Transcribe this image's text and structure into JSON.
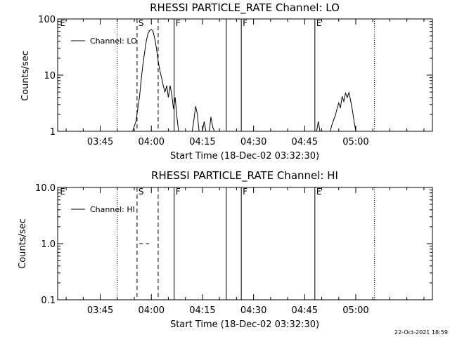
{
  "footer": {
    "timestamp": "22-Oct-2021 18:59"
  },
  "chart_data": [
    {
      "type": "line",
      "title": "RHESSI PARTICLE_RATE Channel: LO",
      "xlabel": "Start Time (18-Dec-02 03:32:30)",
      "ylabel": "Counts/sec",
      "y_scale": "log",
      "ylim": [
        1,
        100
      ],
      "y_ticks": [
        {
          "v": 1,
          "label": "1"
        },
        {
          "v": 10,
          "label": "10"
        },
        {
          "v": 100,
          "label": "100"
        }
      ],
      "x_unit": "minutes after 03:32:30",
      "xlim": [
        0,
        110
      ],
      "x_ticks": [
        {
          "v": 12.5,
          "label": "03:45"
        },
        {
          "v": 27.5,
          "label": "04:00"
        },
        {
          "v": 42.5,
          "label": "04:15"
        },
        {
          "v": 57.5,
          "label": "04:30"
        },
        {
          "v": 72.5,
          "label": "04:45"
        },
        {
          "v": 87.5,
          "label": "05:00"
        }
      ],
      "legend": "top-left",
      "series": [
        {
          "name": "Channel: LO",
          "segments": [
            [
              [
                22.0,
                1.0
              ],
              [
                23.0,
                1.5
              ],
              [
                23.5,
                2.5
              ],
              [
                24.0,
                4
              ],
              [
                24.5,
                8
              ],
              [
                25.0,
                15
              ],
              [
                25.5,
                25
              ],
              [
                26.0,
                40
              ],
              [
                26.5,
                55
              ],
              [
                27.0,
                62
              ],
              [
                27.5,
                65
              ],
              [
                28.0,
                60
              ],
              [
                28.5,
                45
              ],
              [
                29.0,
                30
              ],
              [
                29.5,
                18
              ],
              [
                30.0,
                12
              ],
              [
                30.5,
                9
              ],
              [
                31.0,
                6.5
              ],
              [
                31.5,
                5
              ],
              [
                32.0,
                6.5
              ],
              [
                32.5,
                4
              ],
              [
                33.0,
                6.5
              ],
              [
                33.5,
                4.5
              ],
              [
                34.0,
                2.5
              ],
              [
                34.5,
                4
              ],
              [
                35.0,
                1.8
              ],
              [
                35.5,
                1.0
              ]
            ],
            [
              [
                39.5,
                1.0
              ],
              [
                40.0,
                1.6
              ],
              [
                40.5,
                2.8
              ],
              [
                41.0,
                2.0
              ],
              [
                41.5,
                1.0
              ]
            ],
            [
              [
                42.5,
                1.0
              ],
              [
                43.0,
                1.5
              ],
              [
                43.5,
                1.0
              ]
            ],
            [
              [
                44.5,
                1.0
              ],
              [
                45.0,
                1.8
              ],
              [
                45.5,
                1.2
              ],
              [
                46.0,
                1.0
              ]
            ],
            [
              [
                76.0,
                1.0
              ],
              [
                76.5,
                1.5
              ],
              [
                77.0,
                1.0
              ]
            ],
            [
              [
                80.0,
                1.0
              ],
              [
                80.5,
                1.3
              ],
              [
                81.0,
                1.6
              ],
              [
                81.5,
                1.9
              ],
              [
                82.0,
                2.5
              ],
              [
                82.5,
                3.2
              ],
              [
                83.0,
                2.6
              ],
              [
                83.5,
                4.2
              ],
              [
                84.0,
                3.4
              ],
              [
                84.5,
                4.8
              ],
              [
                85.0,
                4.0
              ],
              [
                85.5,
                4.9
              ],
              [
                86.0,
                3.5
              ],
              [
                86.5,
                2.4
              ],
              [
                87.0,
                1.5
              ],
              [
                87.5,
                1.0
              ]
            ]
          ]
        }
      ],
      "markers": [
        {
          "x": 17.5,
          "style": "dotted",
          "label": ""
        },
        {
          "x": 23.3,
          "style": "dashed",
          "label": "S"
        },
        {
          "x": 29.5,
          "style": "dashed",
          "label": ""
        },
        {
          "x": 34.2,
          "style": "solid",
          "label": "F"
        },
        {
          "x": 49.5,
          "style": "solid",
          "label": ""
        },
        {
          "x": 53.9,
          "style": "solid",
          "label": "F"
        },
        {
          "x": 75.5,
          "style": "solid",
          "label": "E"
        },
        {
          "x": 93.0,
          "style": "dotted",
          "label": ""
        }
      ],
      "corner_labels": [
        {
          "x": 0.5,
          "label": "E"
        }
      ]
    },
    {
      "type": "line",
      "title": "RHESSI PARTICLE_RATE Channel: HI",
      "xlabel": "Start Time (18-Dec-02 03:32:30)",
      "ylabel": "Counts/sec",
      "y_scale": "log",
      "ylim": [
        0.1,
        10.0
      ],
      "y_ticks": [
        {
          "v": 0.1,
          "label": "0.1"
        },
        {
          "v": 1.0,
          "label": "1.0"
        },
        {
          "v": 10.0,
          "label": "10.0"
        }
      ],
      "x_unit": "minutes after 03:32:30",
      "xlim": [
        0,
        110
      ],
      "x_ticks": [
        {
          "v": 12.5,
          "label": "03:45"
        },
        {
          "v": 27.5,
          "label": "04:00"
        },
        {
          "v": 42.5,
          "label": "04:15"
        },
        {
          "v": 57.5,
          "label": "04:30"
        },
        {
          "v": 72.5,
          "label": "04:45"
        },
        {
          "v": 87.5,
          "label": "05:00"
        }
      ],
      "legend": "top-left",
      "series": [
        {
          "name": "Channel: HI",
          "segments": [
            [
              [
                24.0,
                1.0
              ],
              [
                25.0,
                1.0
              ]
            ],
            [
              [
                25.9,
                1.0
              ],
              [
                26.8,
                1.0
              ]
            ]
          ]
        }
      ],
      "markers": [
        {
          "x": 17.5,
          "style": "dotted",
          "label": ""
        },
        {
          "x": 23.3,
          "style": "dashed",
          "label": "S"
        },
        {
          "x": 29.5,
          "style": "dashed",
          "label": ""
        },
        {
          "x": 34.2,
          "style": "solid",
          "label": "F"
        },
        {
          "x": 49.5,
          "style": "solid",
          "label": ""
        },
        {
          "x": 53.9,
          "style": "solid",
          "label": "F"
        },
        {
          "x": 75.5,
          "style": "solid",
          "label": "E"
        },
        {
          "x": 93.0,
          "style": "dotted",
          "label": ""
        }
      ],
      "corner_labels": [
        {
          "x": 0.5,
          "label": "E"
        }
      ]
    }
  ]
}
